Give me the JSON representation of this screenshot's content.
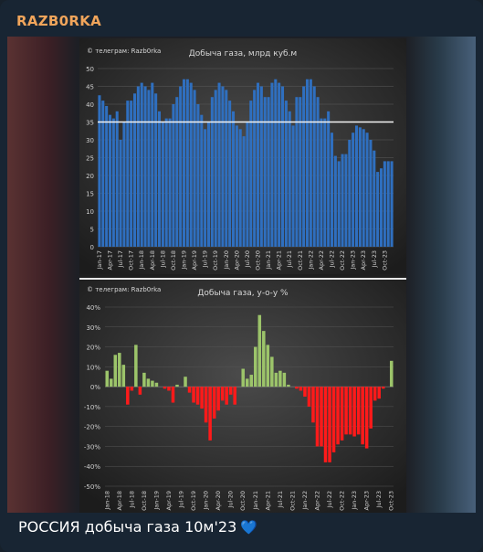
{
  "channel": {
    "name": "RAZB0RKA"
  },
  "caption": {
    "text": "РОССИЯ добыча газа 10м'23",
    "emoji": "💙"
  },
  "colors": {
    "channel_name": "#f1a55b",
    "bar_blue": "#2f6fbf",
    "bar_green": "#9cc46a",
    "bar_red": "#ff1a1a",
    "line": "#ffffff"
  },
  "chart_data": [
    {
      "type": "bar",
      "title": "Добыча газа, млрд куб.м",
      "watermark": "© телеграм: Razb0rka",
      "ylim": [
        0,
        50
      ],
      "yticks": [
        0,
        5,
        10,
        15,
        20,
        25,
        30,
        35,
        40,
        45,
        50
      ],
      "xtick_labels": [
        "Jan-17",
        "Apr-17",
        "Jul-17",
        "Oct-17",
        "Jan-18",
        "Apr-18",
        "Jul-18",
        "Oct-18",
        "Jan-19",
        "Apr-19",
        "Jul-19",
        "Oct-19",
        "Jan-20",
        "Apr-20",
        "Jul-20",
        "Oct-20",
        "Jan-21",
        "Apr-21",
        "Jul-21",
        "Oct-21",
        "Jan-22",
        "Apr-22",
        "Jul-22",
        "Oct-22",
        "Jan-23",
        "Apr-23",
        "Jul-23",
        "Oct-23"
      ],
      "reference_line": 35,
      "values": [
        42.5,
        41,
        39.5,
        37,
        36,
        38,
        30,
        35,
        41,
        41,
        43,
        45,
        46,
        45,
        44,
        46,
        43,
        38,
        35,
        36,
        36,
        40,
        42,
        45,
        47,
        47,
        46,
        44,
        40,
        37,
        33,
        35,
        42,
        44,
        46,
        45,
        44,
        41,
        38,
        34,
        33,
        31,
        35,
        41,
        44,
        46,
        45,
        42,
        42,
        46,
        47,
        46,
        45,
        41,
        38,
        34,
        42,
        42,
        45,
        47,
        47,
        45,
        42,
        36,
        36,
        38,
        32,
        25.5,
        24,
        26,
        26,
        30,
        32,
        34,
        33.5,
        33,
        32,
        30,
        27,
        21,
        22,
        24,
        24,
        24
      ]
    },
    {
      "type": "bar",
      "title": "Добыча газа, у-о-у %",
      "watermark": "© телеграм: Razb0rka",
      "ylim": [
        -50,
        40
      ],
      "ytick_labels": [
        "-50%",
        "-40%",
        "-30%",
        "-20%",
        "-10%",
        "0%",
        "10%",
        "20%",
        "30%",
        "40%"
      ],
      "xtick_labels": [
        "Jan-18",
        "Apr-18",
        "Jul-18",
        "Oct-18",
        "Jan-19",
        "Apr-19",
        "Jul-19",
        "Oct-19",
        "Jan-20",
        "Apr-20",
        "Jul-20",
        "Oct-20",
        "Jan-21",
        "Apr-21",
        "Jul-21",
        "Oct-21",
        "Jan-22",
        "Apr-22",
        "Jul-22",
        "Oct-22",
        "Jan-23",
        "Apr-23",
        "Jul-23",
        "Oct-23"
      ],
      "values": [
        8,
        4,
        16,
        17,
        11,
        -9,
        -2,
        21,
        -4,
        7,
        4,
        3,
        2,
        0,
        -1,
        -2,
        -8,
        1,
        0,
        5,
        -3,
        -8,
        -9,
        -11,
        -18,
        -27,
        -16,
        -12,
        -7,
        -9,
        -4,
        -9,
        0,
        9,
        4,
        6,
        20,
        36,
        28,
        21,
        15,
        7,
        8,
        7,
        1,
        0,
        -1,
        -2,
        -5,
        -10,
        -18,
        -30,
        -30,
        -38,
        -38,
        -33,
        -29,
        -27,
        -24,
        -24,
        -25,
        -24,
        -29,
        -31,
        -21,
        -7,
        -6,
        -1,
        0,
        13
      ]
    }
  ]
}
